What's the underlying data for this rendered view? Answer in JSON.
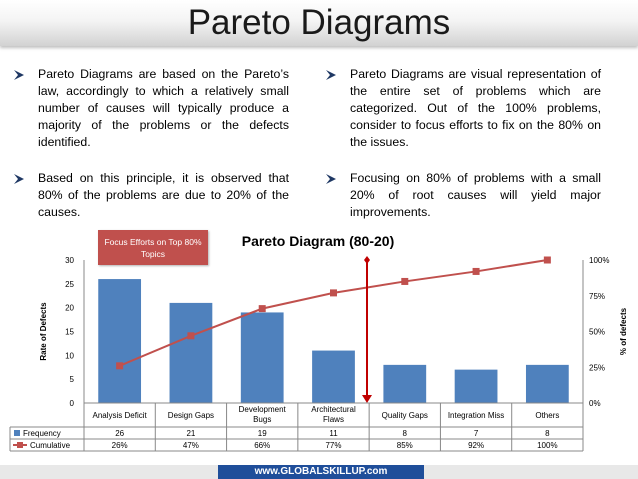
{
  "slide": {
    "title": "Pareto Diagrams",
    "left_bullets": [
      "Pareto Diagrams are based on the Pareto’s law, accordingly to which a relatively small number of causes will typically produce a majority of the problems or the defects identified.",
      "Based on this principle, it is observed that 80% of the problems are due to 20% of the causes."
    ],
    "right_bullets": [
      "Pareto Diagrams are visual representation of the entire set of problems which are categorized. Out of the 100% problems, consider to focus efforts to fix on the 80% on the issues.",
      "Focusing on 80% of problems with a small 20% of root causes will yield major improvements."
    ],
    "callout": "Focus Efforts on Top 80% Topics",
    "footer": "www.GLOBALSKILLUP.com"
  },
  "colors": {
    "bar": "#4f81bd",
    "line": "#c0504d",
    "marker_line": "#c00000",
    "bullet": "#1f3864",
    "footer": "#1f4e9a"
  },
  "chart_data": {
    "type": "bar",
    "title": "Pareto Diagram (80-20)",
    "ylabel": "Rate of Defects",
    "y2label": "% of defects",
    "categories": [
      "Analysis Deficit",
      "Design Gaps",
      "Development Bugs",
      "Architectural Flaws",
      "Quality Gaps",
      "Integration Miss",
      "Others"
    ],
    "series": [
      {
        "name": "Frequency",
        "kind": "bar",
        "axis": "left",
        "values": [
          26,
          21,
          19,
          11,
          8,
          7,
          8
        ]
      },
      {
        "name": "Cumulative",
        "kind": "line",
        "axis": "right",
        "values": [
          26,
          47,
          66,
          77,
          85,
          92,
          100
        ],
        "labels": [
          "26%",
          "47%",
          "66%",
          "77%",
          "85%",
          "92%",
          "100%"
        ]
      }
    ],
    "ylim": [
      0,
      30
    ],
    "yticks": [
      "0",
      "5",
      "10",
      "15",
      "20",
      "25",
      "30"
    ],
    "y2lim": [
      0,
      100
    ],
    "y2ticks": [
      "0%",
      "25%",
      "50%",
      "75%",
      "100%"
    ],
    "cutoff_between": [
      4,
      5
    ],
    "legend": "data-table",
    "grid": false
  }
}
